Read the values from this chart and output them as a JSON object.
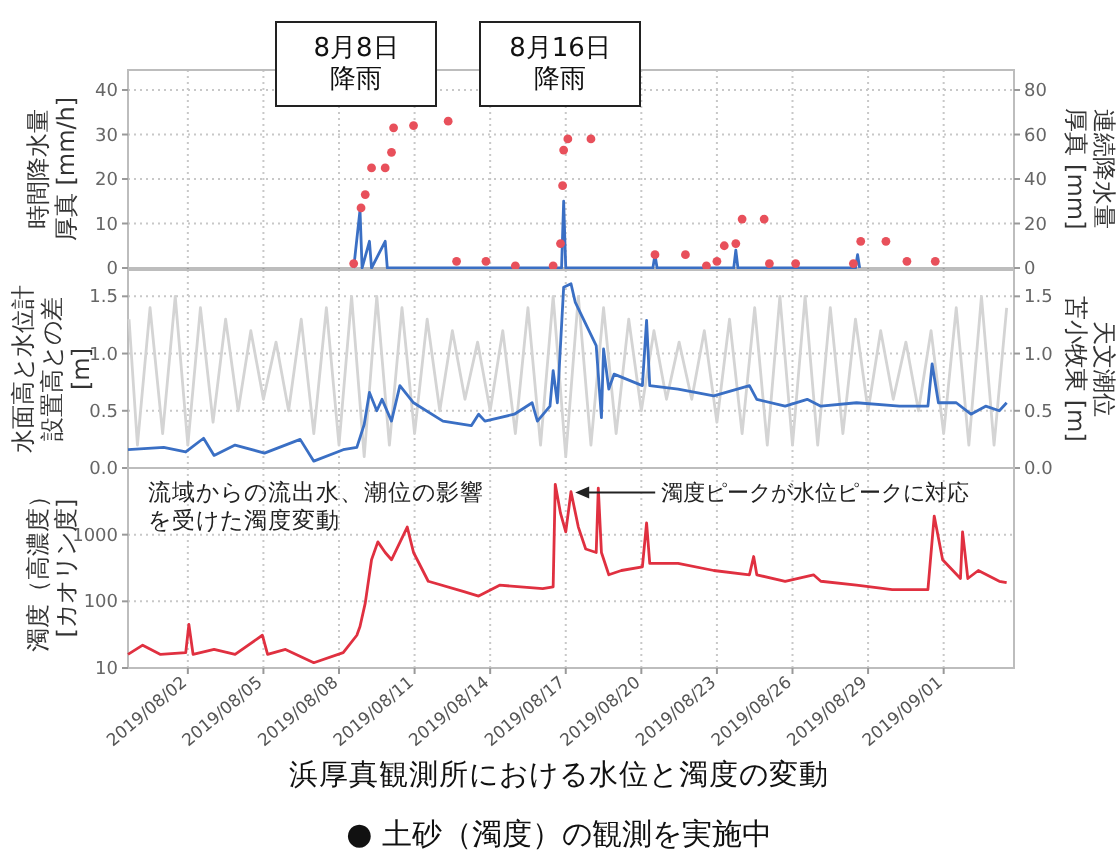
{
  "chart_data": [
    {
      "type": "line",
      "ylabel": "時間降水量厚真 [mm/h]",
      "y2label": "連続降水量厚真 [mm]",
      "xlim": [
        "2019-07-30T15:00",
        "2019-09-03T19:00"
      ],
      "xticks": [
        {
          "value": "2019-08-02",
          "label": null
        },
        {
          "value": "2019-08-05",
          "label": null
        },
        {
          "value": "2019-08-08",
          "label": null
        },
        {
          "value": "2019-08-11",
          "label": null
        },
        {
          "value": "2019-08-14",
          "label": null
        },
        {
          "value": "2019-08-17",
          "label": null
        },
        {
          "value": "2019-08-20",
          "label": null
        },
        {
          "value": "2019-08-23",
          "label": null
        },
        {
          "value": "2019-08-26",
          "label": null
        },
        {
          "value": "2019-08-29",
          "label": null
        },
        {
          "value": "2019-09-01",
          "label": null
        }
      ],
      "ylim": [
        0,
        44.5
      ],
      "yticks": [
        0,
        10,
        20,
        30,
        40
      ],
      "y2lim": [
        0,
        89
      ],
      "y2ticks": [
        0,
        20,
        40,
        60,
        80
      ],
      "grid": true,
      "tick_labels": "y",
      "annotations": [
        "8月8日降雨",
        "8月16日降雨"
      ],
      "series": [
        {
          "color": "#3a6fc4",
          "x": [
            "2019-08-08T14:00",
            "2019-08-08T20:00",
            "2019-08-08T22:00",
            "2019-08-09T05:00",
            "2019-08-09T07:00",
            "2019-08-09T20:00",
            "2019-08-09T22:00",
            "2019-08-16T20:00",
            "2019-08-16T22:00",
            "2019-08-17T00:00",
            "2019-08-20T11:00",
            "2019-08-20T13:00",
            "2019-08-20T15:00",
            "2019-08-23T16:00",
            "2019-08-23T18:00",
            "2019-08-23T20:00",
            "2019-08-28T12:00",
            "2019-08-28T14:00",
            "2019-08-28T16:00"
          ],
          "values": [
            0,
            13,
            0,
            6,
            0,
            6,
            0,
            0,
            15,
            0,
            0,
            3,
            0,
            0,
            4,
            0,
            0,
            3,
            0
          ]
        },
        {
          "type": "scatter",
          "axis": "y2",
          "color": "#e8505b",
          "x": [
            "2019-08-08T14:00",
            "2019-08-08T21:00",
            "2019-08-09T01:00",
            "2019-08-09T07:00",
            "2019-08-09T20:00",
            "2019-08-10T02:00",
            "2019-08-10T04:00",
            "2019-08-10T23:00",
            "2019-08-12T08:00",
            "2019-08-12T16:00",
            "2019-08-13T20:00",
            "2019-08-15T00:00",
            "2019-08-16T12:00",
            "2019-08-16T19:00",
            "2019-08-16T21:00",
            "2019-08-16T22:00",
            "2019-08-17T02:00",
            "2019-08-18T00:00",
            "2019-08-20T13:00",
            "2019-08-21T18:00",
            "2019-08-22T14:00",
            "2019-08-23T00:00",
            "2019-08-23T07:00",
            "2019-08-23T18:00",
            "2019-08-24T00:00",
            "2019-08-24T21:00",
            "2019-08-25T02:00",
            "2019-08-26T03:00",
            "2019-08-28T10:00",
            "2019-08-28T17:00",
            "2019-08-29T17:00",
            "2019-08-30T13:00",
            "2019-08-31T16:00"
          ],
          "values": [
            2,
            27,
            33,
            45,
            45,
            52,
            63,
            64,
            66,
            3,
            3,
            1,
            1,
            11,
            37,
            53,
            58,
            58,
            6,
            6,
            1,
            3,
            10,
            11,
            22,
            22,
            2,
            2,
            2,
            12,
            12,
            3,
            3
          ]
        }
      ]
    },
    {
      "type": "line",
      "ylabel": "水面高と水位計設置高との差[m]",
      "y2label": "天文潮位苫小牧東 [m]",
      "xlim": [
        "2019-07-30T15:00",
        "2019-09-03T19:00"
      ],
      "xticks": [
        {
          "value": "2019-08-02",
          "label": null
        },
        {
          "value": "2019-08-05",
          "label": null
        },
        {
          "value": "2019-08-08",
          "label": null
        },
        {
          "value": "2019-08-11",
          "label": null
        },
        {
          "value": "2019-08-14",
          "label": null
        },
        {
          "value": "2019-08-17",
          "label": null
        },
        {
          "value": "2019-08-20",
          "label": null
        },
        {
          "value": "2019-08-23",
          "label": null
        },
        {
          "value": "2019-08-26",
          "label": null
        },
        {
          "value": "2019-08-29",
          "label": null
        },
        {
          "value": "2019-09-01",
          "label": null
        }
      ],
      "ylim": [
        0,
        1.73
      ],
      "yticks": [
        {
          "value": 0,
          "label": "0.0"
        },
        0.5,
        {
          "value": 1,
          "label": "1.0"
        },
        1.5
      ],
      "y2lim": [
        0,
        1.73
      ],
      "y2ticks": [
        {
          "value": 0,
          "label": "0.0"
        },
        0.5,
        {
          "value": 1,
          "label": "1.0"
        },
        1.5
      ],
      "grid": true,
      "tick_labels": "y",
      "series": [
        {
          "axis": "y2",
          "color": "#d4d4d4",
          "x": [
            "2019-07-30T16:00",
            "2019-07-31T00:00",
            "2019-07-31T12:00",
            "2019-08-01T00:00",
            "2019-08-01T12:00",
            "2019-08-02T00:00",
            "2019-08-02T12:00",
            "2019-08-03T00:00",
            "2019-08-03T12:00",
            "2019-08-04T00:00",
            "2019-08-04T12:00",
            "2019-08-05T00:00",
            "2019-08-05T12:00",
            "2019-08-06T00:00",
            "2019-08-06T12:00",
            "2019-08-07T00:00",
            "2019-08-07T12:00",
            "2019-08-08T00:00",
            "2019-08-08T12:00",
            "2019-08-09T00:00",
            "2019-08-09T12:00",
            "2019-08-10T00:00",
            "2019-08-10T12:00",
            "2019-08-11T00:00",
            "2019-08-11T12:00",
            "2019-08-12T00:00",
            "2019-08-12T12:00",
            "2019-08-13T00:00",
            "2019-08-13T12:00",
            "2019-08-14T00:00",
            "2019-08-14T12:00",
            "2019-08-15T00:00",
            "2019-08-15T12:00",
            "2019-08-16T00:00",
            "2019-08-16T12:00",
            "2019-08-17T00:00",
            "2019-08-17T12:00",
            "2019-08-18T00:00",
            "2019-08-18T12:00",
            "2019-08-19T00:00",
            "2019-08-19T12:00",
            "2019-08-20T00:00",
            "2019-08-20T12:00",
            "2019-08-21T00:00",
            "2019-08-21T12:00",
            "2019-08-22T00:00",
            "2019-08-22T12:00",
            "2019-08-23T00:00",
            "2019-08-23T12:00",
            "2019-08-24T00:00",
            "2019-08-24T12:00",
            "2019-08-25T00:00",
            "2019-08-25T12:00",
            "2019-08-26T00:00",
            "2019-08-26T12:00",
            "2019-08-27T00:00",
            "2019-08-27T12:00",
            "2019-08-28T00:00",
            "2019-08-28T12:00",
            "2019-08-29T00:00",
            "2019-08-29T12:00",
            "2019-08-30T00:00",
            "2019-08-30T12:00",
            "2019-08-31T00:00",
            "2019-08-31T12:00",
            "2019-09-01T00:00",
            "2019-09-01T12:00",
            "2019-09-02T00:00",
            "2019-09-02T12:00",
            "2019-09-03T00:00",
            "2019-09-03T12:00"
          ],
          "values": [
            1.3,
            0.2,
            1.4,
            0.3,
            1.5,
            0.2,
            1.4,
            0.4,
            1.3,
            0.5,
            1.2,
            0.6,
            1.1,
            0.5,
            1.3,
            0.3,
            1.4,
            0.2,
            1.5,
            0.1,
            1.5,
            0.2,
            1.4,
            0.3,
            1.3,
            0.5,
            1.2,
            0.6,
            1.1,
            0.5,
            1.2,
            0.3,
            1.4,
            0.2,
            1.5,
            0.1,
            1.5,
            0.2,
            1.4,
            0.3,
            1.3,
            0.5,
            1.2,
            0.6,
            1.1,
            0.6,
            1.2,
            0.4,
            1.3,
            0.3,
            1.4,
            0.2,
            1.5,
            0.2,
            1.5,
            0.2,
            1.4,
            0.3,
            1.3,
            0.5,
            1.2,
            0.6,
            1.1,
            0.5,
            1.2,
            0.3,
            1.4,
            0.2,
            1.5,
            0.2,
            1.4
          ]
        },
        {
          "color": "#3a6fc4",
          "x": [
            "2019-07-30T15:00",
            "2019-08-01T01:00",
            "2019-08-01T22:00",
            "2019-08-02T15:00",
            "2019-08-03T01:00",
            "2019-08-03T21:00",
            "2019-08-05T01:00",
            "2019-08-06T11:00",
            "2019-08-07T00:00",
            "2019-08-08T04:00",
            "2019-08-08T17:00",
            "2019-08-09T00:00",
            "2019-08-09T05:00",
            "2019-08-09T12:00",
            "2019-08-09T17:00",
            "2019-08-10T02:00",
            "2019-08-10T10:00",
            "2019-08-10T23:00",
            "2019-08-12T03:00",
            "2019-08-13T06:00",
            "2019-08-13T13:00",
            "2019-08-13T19:00",
            "2019-08-14T23:00",
            "2019-08-15T16:00",
            "2019-08-15T21:00",
            "2019-08-16T09:00",
            "2019-08-16T12:00",
            "2019-08-16T16:00",
            "2019-08-16T22:00",
            "2019-08-17T05:00",
            "2019-08-17T09:00",
            "2019-08-17T19:00",
            "2019-08-18T05:00",
            "2019-08-18T10:00",
            "2019-08-18T12:00",
            "2019-08-18T17:00",
            "2019-08-18T22:00",
            "2019-08-20T01:00",
            "2019-08-20T05:00",
            "2019-08-20T08:00",
            "2019-08-21T11:00",
            "2019-08-22T21:00",
            "2019-08-24T07:00",
            "2019-08-24T14:00",
            "2019-08-25T17:00",
            "2019-08-26T14:00",
            "2019-08-27T03:00",
            "2019-08-28T13:00",
            "2019-08-30T06:00",
            "2019-08-31T09:00",
            "2019-08-31T13:00",
            "2019-08-31T19:00",
            "2019-09-01T12:00",
            "2019-09-02T02:00",
            "2019-09-02T16:00",
            "2019-09-03T05:00",
            "2019-09-03T12:00"
          ],
          "values": [
            0.16,
            0.18,
            0.14,
            0.26,
            0.11,
            0.2,
            0.13,
            0.25,
            0.06,
            0.16,
            0.18,
            0.38,
            0.66,
            0.5,
            0.6,
            0.41,
            0.72,
            0.57,
            0.41,
            0.37,
            0.47,
            0.41,
            0.47,
            0.57,
            0.41,
            0.54,
            0.85,
            0.57,
            1.58,
            1.61,
            1.45,
            1.26,
            1.07,
            0.44,
            1.04,
            0.69,
            0.82,
            0.72,
            1.29,
            0.72,
            0.69,
            0.63,
            0.72,
            0.6,
            0.54,
            0.6,
            0.54,
            0.57,
            0.54,
            0.54,
            0.91,
            0.57,
            0.57,
            0.47,
            0.54,
            0.5,
            0.57
          ]
        }
      ]
    },
    {
      "type": "line",
      "title": "浜厚真観測所における水位と濁度の変動",
      "subtitle": "● 土砂（濁度）の観測を実施中",
      "ylabel": "濁度（高濃度）[カオリン度]",
      "log": "y",
      "xlim": [
        "2019-07-30T15:00",
        "2019-09-03T19:00"
      ],
      "xticks": [
        {
          "value": "2019-08-02",
          "label": "2019/08/02"
        },
        {
          "value": "2019-08-05",
          "label": "2019/08/05"
        },
        {
          "value": "2019-08-08",
          "label": "2019/08/08"
        },
        {
          "value": "2019-08-11",
          "label": "2019/08/11"
        },
        {
          "value": "2019-08-14",
          "label": "2019/08/14"
        },
        {
          "value": "2019-08-17",
          "label": "2019/08/17"
        },
        {
          "value": "2019-08-20",
          "label": "2019/08/20"
        },
        {
          "value": "2019-08-23",
          "label": "2019/08/23"
        },
        {
          "value": "2019-08-26",
          "label": "2019/08/26"
        },
        {
          "value": "2019-08-29",
          "label": "2019/08/29"
        },
        {
          "value": "2019-09-01",
          "label": "2019/09/01"
        }
      ],
      "ylim": [
        10,
        10000
      ],
      "yticks": [
        10,
        100,
        1000
      ],
      "grid": true,
      "annotations": [
        "流域からの流出水、潮位の影響を受けた濁度変動",
        {
          "text": "濁度ピークが水位ピークに対応",
          "x": "2019-08-17T09:00",
          "y": 4300
        }
      ],
      "series": [
        {
          "color": "#e03040",
          "x": [
            "2019-07-30T15:00",
            "2019-07-31T05:00",
            "2019-07-31T22:00",
            "2019-08-01T22:00",
            "2019-08-02T01:00",
            "2019-08-02T05:00",
            "2019-08-03T01:00",
            "2019-08-03T21:00",
            "2019-08-04T23:00",
            "2019-08-05T04:00",
            "2019-08-05T21:00",
            "2019-08-07T00:00",
            "2019-08-08T04:00",
            "2019-08-08T17:00",
            "2019-08-08T20:00",
            "2019-08-09T01:00",
            "2019-08-09T07:00",
            "2019-08-09T13:00",
            "2019-08-09T20:00",
            "2019-08-10T02:00",
            "2019-08-10T17:00",
            "2019-08-10T23:00",
            "2019-08-11T13:00",
            "2019-08-12T23:00",
            "2019-08-13T13:00",
            "2019-08-14T09:00",
            "2019-08-16T02:00",
            "2019-08-16T12:00",
            "2019-08-16T14:00",
            "2019-08-16T19:00",
            "2019-08-17T00:00",
            "2019-08-17T05:00",
            "2019-08-17T12:00",
            "2019-08-17T19:00",
            "2019-08-18T05:00",
            "2019-08-18T07:00",
            "2019-08-18T10:00",
            "2019-08-18T17:00",
            "2019-08-19T05:00",
            "2019-08-20T01:00",
            "2019-08-20T05:00",
            "2019-08-20T08:00",
            "2019-08-21T11:00",
            "2019-08-22T21:00",
            "2019-08-24T07:00",
            "2019-08-24T11:00",
            "2019-08-24T14:00",
            "2019-08-25T17:00",
            "2019-08-26T20:00",
            "2019-08-27T03:00",
            "2019-08-28T13:00",
            "2019-08-29T23:00",
            "2019-08-31T09:00",
            "2019-08-31T15:00",
            "2019-08-31T23:00",
            "2019-09-01T16:00",
            "2019-09-01T18:00",
            "2019-09-01T23:00",
            "2019-09-02T09:00",
            "2019-09-03T05:00",
            "2019-09-03T12:00"
          ],
          "values": [
            16,
            22,
            16,
            17,
            45,
            16,
            19,
            16,
            31,
            16,
            19,
            12,
            17,
            31,
            42,
            94,
            420,
            780,
            540,
            420,
            1300,
            540,
            200,
            140,
            120,
            175,
            155,
            165,
            5700,
            2100,
            1100,
            4400,
            1300,
            610,
            540,
            5000,
            540,
            250,
            290,
            330,
            1500,
            370,
            370,
            290,
            250,
            470,
            250,
            200,
            250,
            200,
            175,
            150,
            150,
            1900,
            420,
            220,
            1100,
            220,
            290,
            200,
            190
          ]
        }
      ]
    }
  ]
}
